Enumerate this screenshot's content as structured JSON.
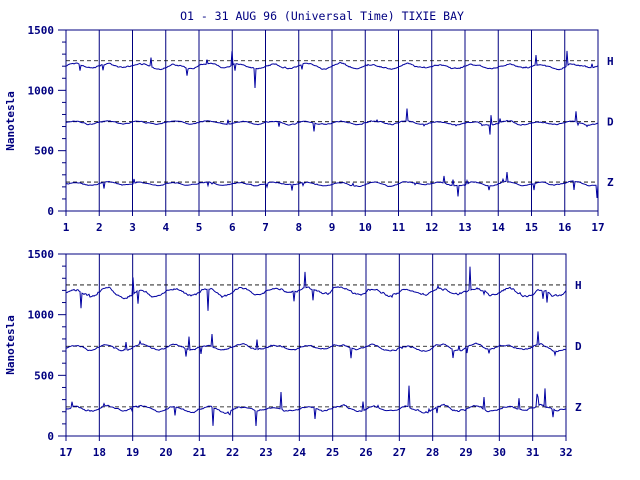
{
  "chart_data": {
    "title": "O1 - 31 AUG 96 (Universal Time) TIXIE BAY",
    "type": "line",
    "colors": {
      "trace": "#0000a0",
      "axes": "#000080",
      "reference": "#000000",
      "background": "#ffffff"
    },
    "panels": [
      {
        "x_range": [
          1,
          17
        ],
        "x_ticks": [
          "1",
          "2",
          "3",
          "4",
          "5",
          "6",
          "7",
          "8",
          "9",
          "10",
          "11",
          "12",
          "13",
          "14",
          "15",
          "16",
          "17"
        ],
        "ylabel": "Nanotesla",
        "ylim": [
          0,
          1500
        ],
        "y_ticks": [
          "0",
          "500",
          "1000",
          "1500"
        ],
        "grid": "vertical lines at each day",
        "series": [
          {
            "name": "H",
            "baseline": 1200,
            "reference_line": 1245
          },
          {
            "name": "D",
            "baseline": 730,
            "reference_line": 740
          },
          {
            "name": "Z",
            "baseline": 225,
            "reference_line": 240
          }
        ]
      },
      {
        "x_range": [
          17,
          32
        ],
        "x_ticks": [
          "17",
          "18",
          "19",
          "20",
          "21",
          "22",
          "23",
          "24",
          "25",
          "26",
          "27",
          "28",
          "29",
          "30",
          "31",
          "32"
        ],
        "ylabel": "Nanotesla",
        "ylim": [
          0,
          1500
        ],
        "y_ticks": [
          "0",
          "500",
          "1000",
          "1500"
        ],
        "grid": "vertical lines at each day",
        "series": [
          {
            "name": "H",
            "baseline": 1190,
            "reference_line": 1245
          },
          {
            "name": "D",
            "baseline": 730,
            "reference_line": 740
          },
          {
            "name": "Z",
            "baseline": 225,
            "reference_line": 240
          }
        ]
      }
    ]
  }
}
